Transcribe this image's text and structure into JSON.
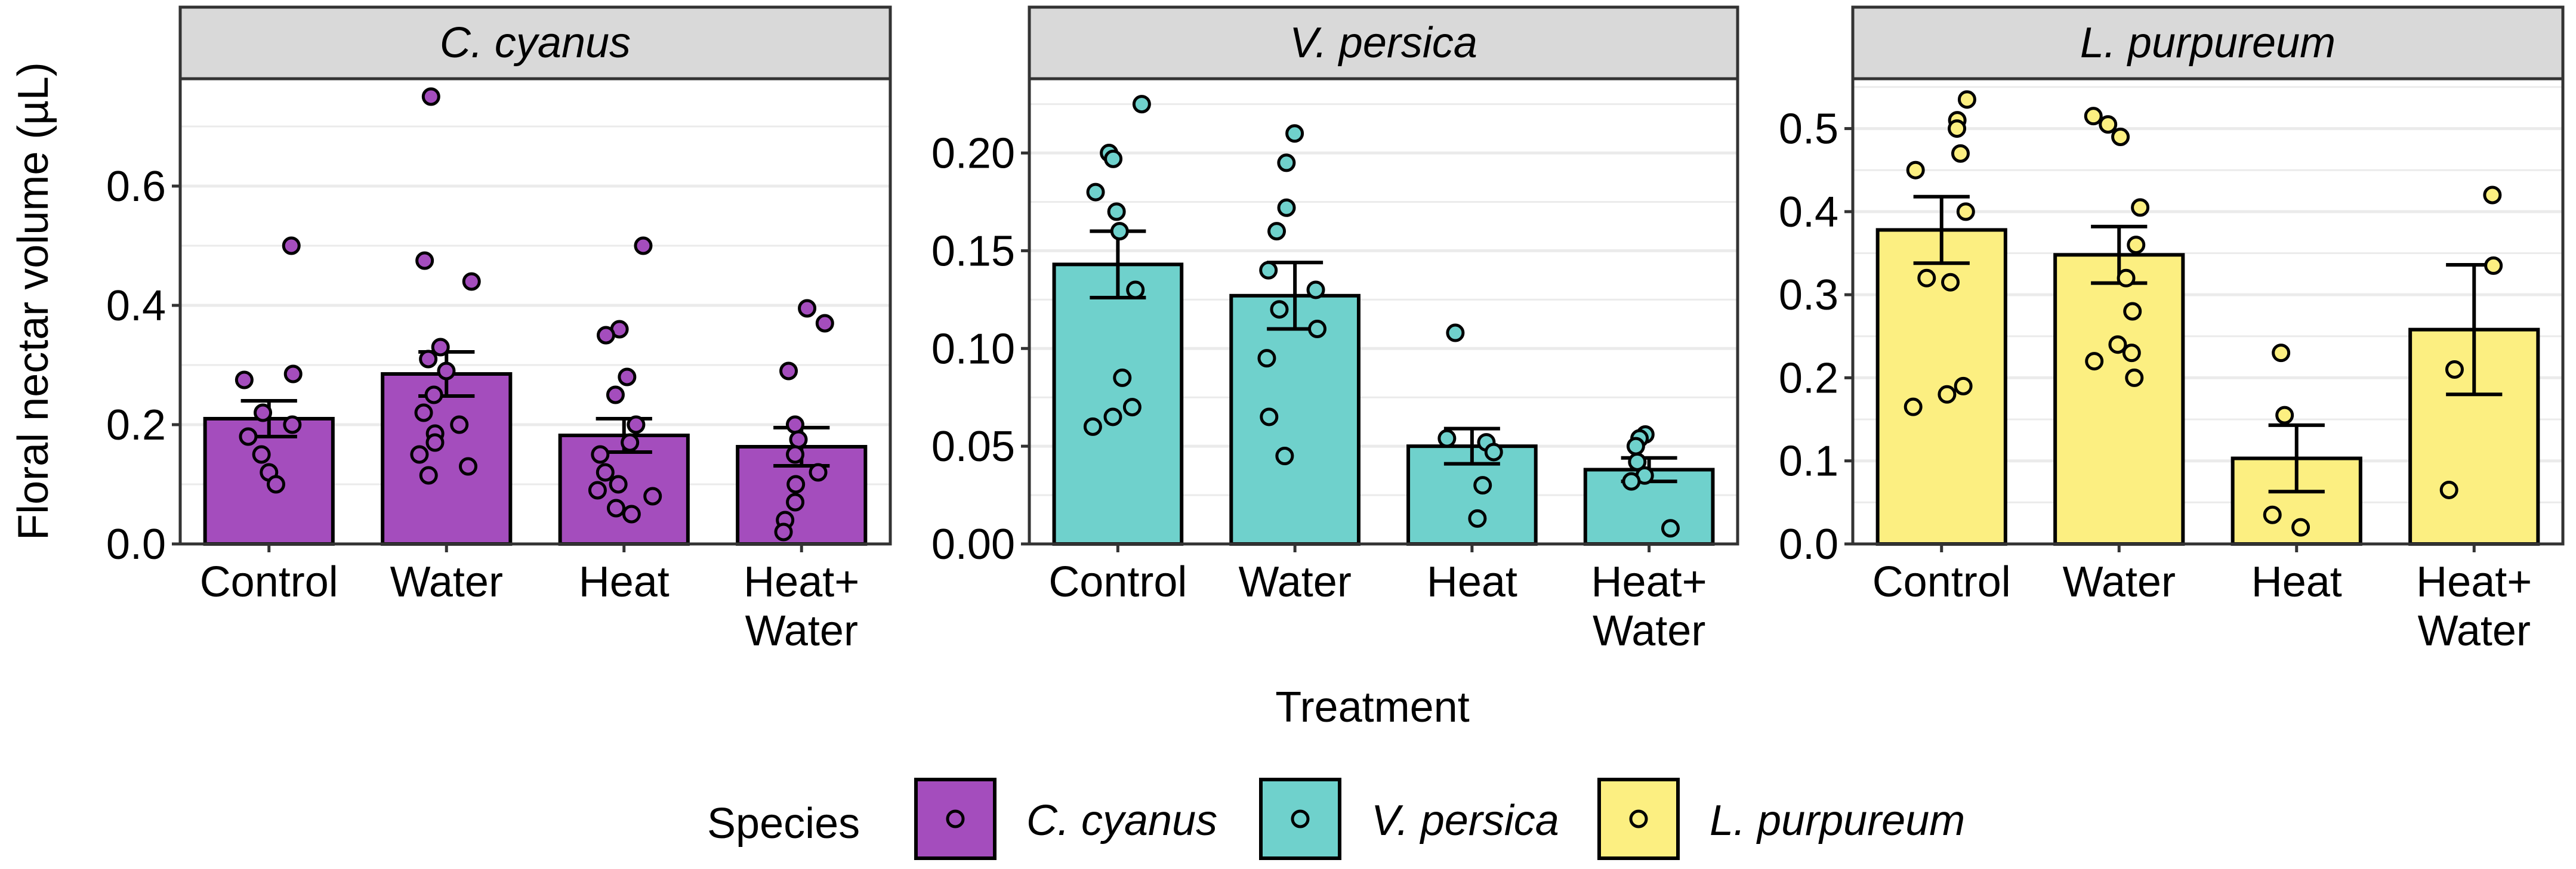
{
  "figure": {
    "ylabel": "Floral nectar volume (µL)",
    "xlabel": "Treatment",
    "legend_title": "Species"
  },
  "colors": {
    "C. cyanus": "#a44dbd",
    "V. persica": "#6fd1cc",
    "L. purpureum": "#fcef81",
    "strip": "#d9d9d9",
    "grid": "#ebebeb",
    "panel_border": "#333333"
  },
  "chart_data": [
    {
      "type": "bar",
      "title": "C. cyanus",
      "categories": [
        "Control",
        "Water",
        "Heat",
        "Heat+\nWater"
      ],
      "values": [
        0.21,
        0.285,
        0.182,
        0.163
      ],
      "se": [
        0.03,
        0.037,
        0.028,
        0.032
      ],
      "points": [
        [
          0.5,
          0.285,
          0.275,
          0.22,
          0.2,
          0.18,
          0.15,
          0.12,
          0.1
        ],
        [
          0.75,
          0.475,
          0.44,
          0.33,
          0.31,
          0.29,
          0.25,
          0.22,
          0.2,
          0.185,
          0.17,
          0.15,
          0.13,
          0.115
        ],
        [
          0.5,
          0.36,
          0.35,
          0.28,
          0.25,
          0.2,
          0.17,
          0.15,
          0.12,
          0.1,
          0.09,
          0.08,
          0.06,
          0.05
        ],
        [
          0.395,
          0.37,
          0.29,
          0.2,
          0.175,
          0.15,
          0.12,
          0.1,
          0.07,
          0.04,
          0.02
        ]
      ],
      "ylim": [
        0,
        0.78
      ],
      "yticks": [
        "0.0",
        "0.2",
        "0.4",
        "0.6"
      ]
    },
    {
      "type": "bar",
      "title": "V. persica",
      "categories": [
        "Control",
        "Water",
        "Heat",
        "Heat+\nWater"
      ],
      "values": [
        0.143,
        0.127,
        0.05,
        0.038
      ],
      "se": [
        0.017,
        0.017,
        0.009,
        0.006
      ],
      "points": [
        [
          0.225,
          0.2,
          0.197,
          0.18,
          0.17,
          0.16,
          0.13,
          0.085,
          0.07,
          0.065,
          0.06
        ],
        [
          0.21,
          0.195,
          0.172,
          0.16,
          0.14,
          0.13,
          0.12,
          0.11,
          0.095,
          0.065,
          0.045
        ],
        [
          0.108,
          0.054,
          0.052,
          0.047,
          0.03,
          0.013
        ],
        [
          0.056,
          0.054,
          0.05,
          0.042,
          0.035,
          0.032,
          0.008
        ]
      ],
      "ylim": [
        0,
        0.238
      ],
      "yticks": [
        "0.00",
        "0.05",
        "0.10",
        "0.15",
        "0.20"
      ]
    },
    {
      "type": "bar",
      "title": "L. purpureum",
      "categories": [
        "Control",
        "Water",
        "Heat",
        "Heat+\nWater"
      ],
      "values": [
        0.378,
        0.348,
        0.103,
        0.258
      ],
      "se": [
        0.04,
        0.034,
        0.04,
        0.078
      ],
      "points": [
        [
          0.535,
          0.51,
          0.5,
          0.47,
          0.45,
          0.4,
          0.32,
          0.315,
          0.19,
          0.18,
          0.165
        ],
        [
          0.515,
          0.505,
          0.49,
          0.405,
          0.36,
          0.32,
          0.28,
          0.24,
          0.23,
          0.22,
          0.2
        ],
        [
          0.23,
          0.155,
          0.035,
          0.02
        ],
        [
          0.42,
          0.335,
          0.21,
          0.065
        ]
      ],
      "ylim": [
        0,
        0.56
      ],
      "yticks": [
        "0.0",
        "0.1",
        "0.2",
        "0.3",
        "0.4",
        "0.5"
      ]
    }
  ],
  "legend": {
    "items": [
      "C. cyanus",
      "V. persica",
      "L. purpureum"
    ]
  }
}
